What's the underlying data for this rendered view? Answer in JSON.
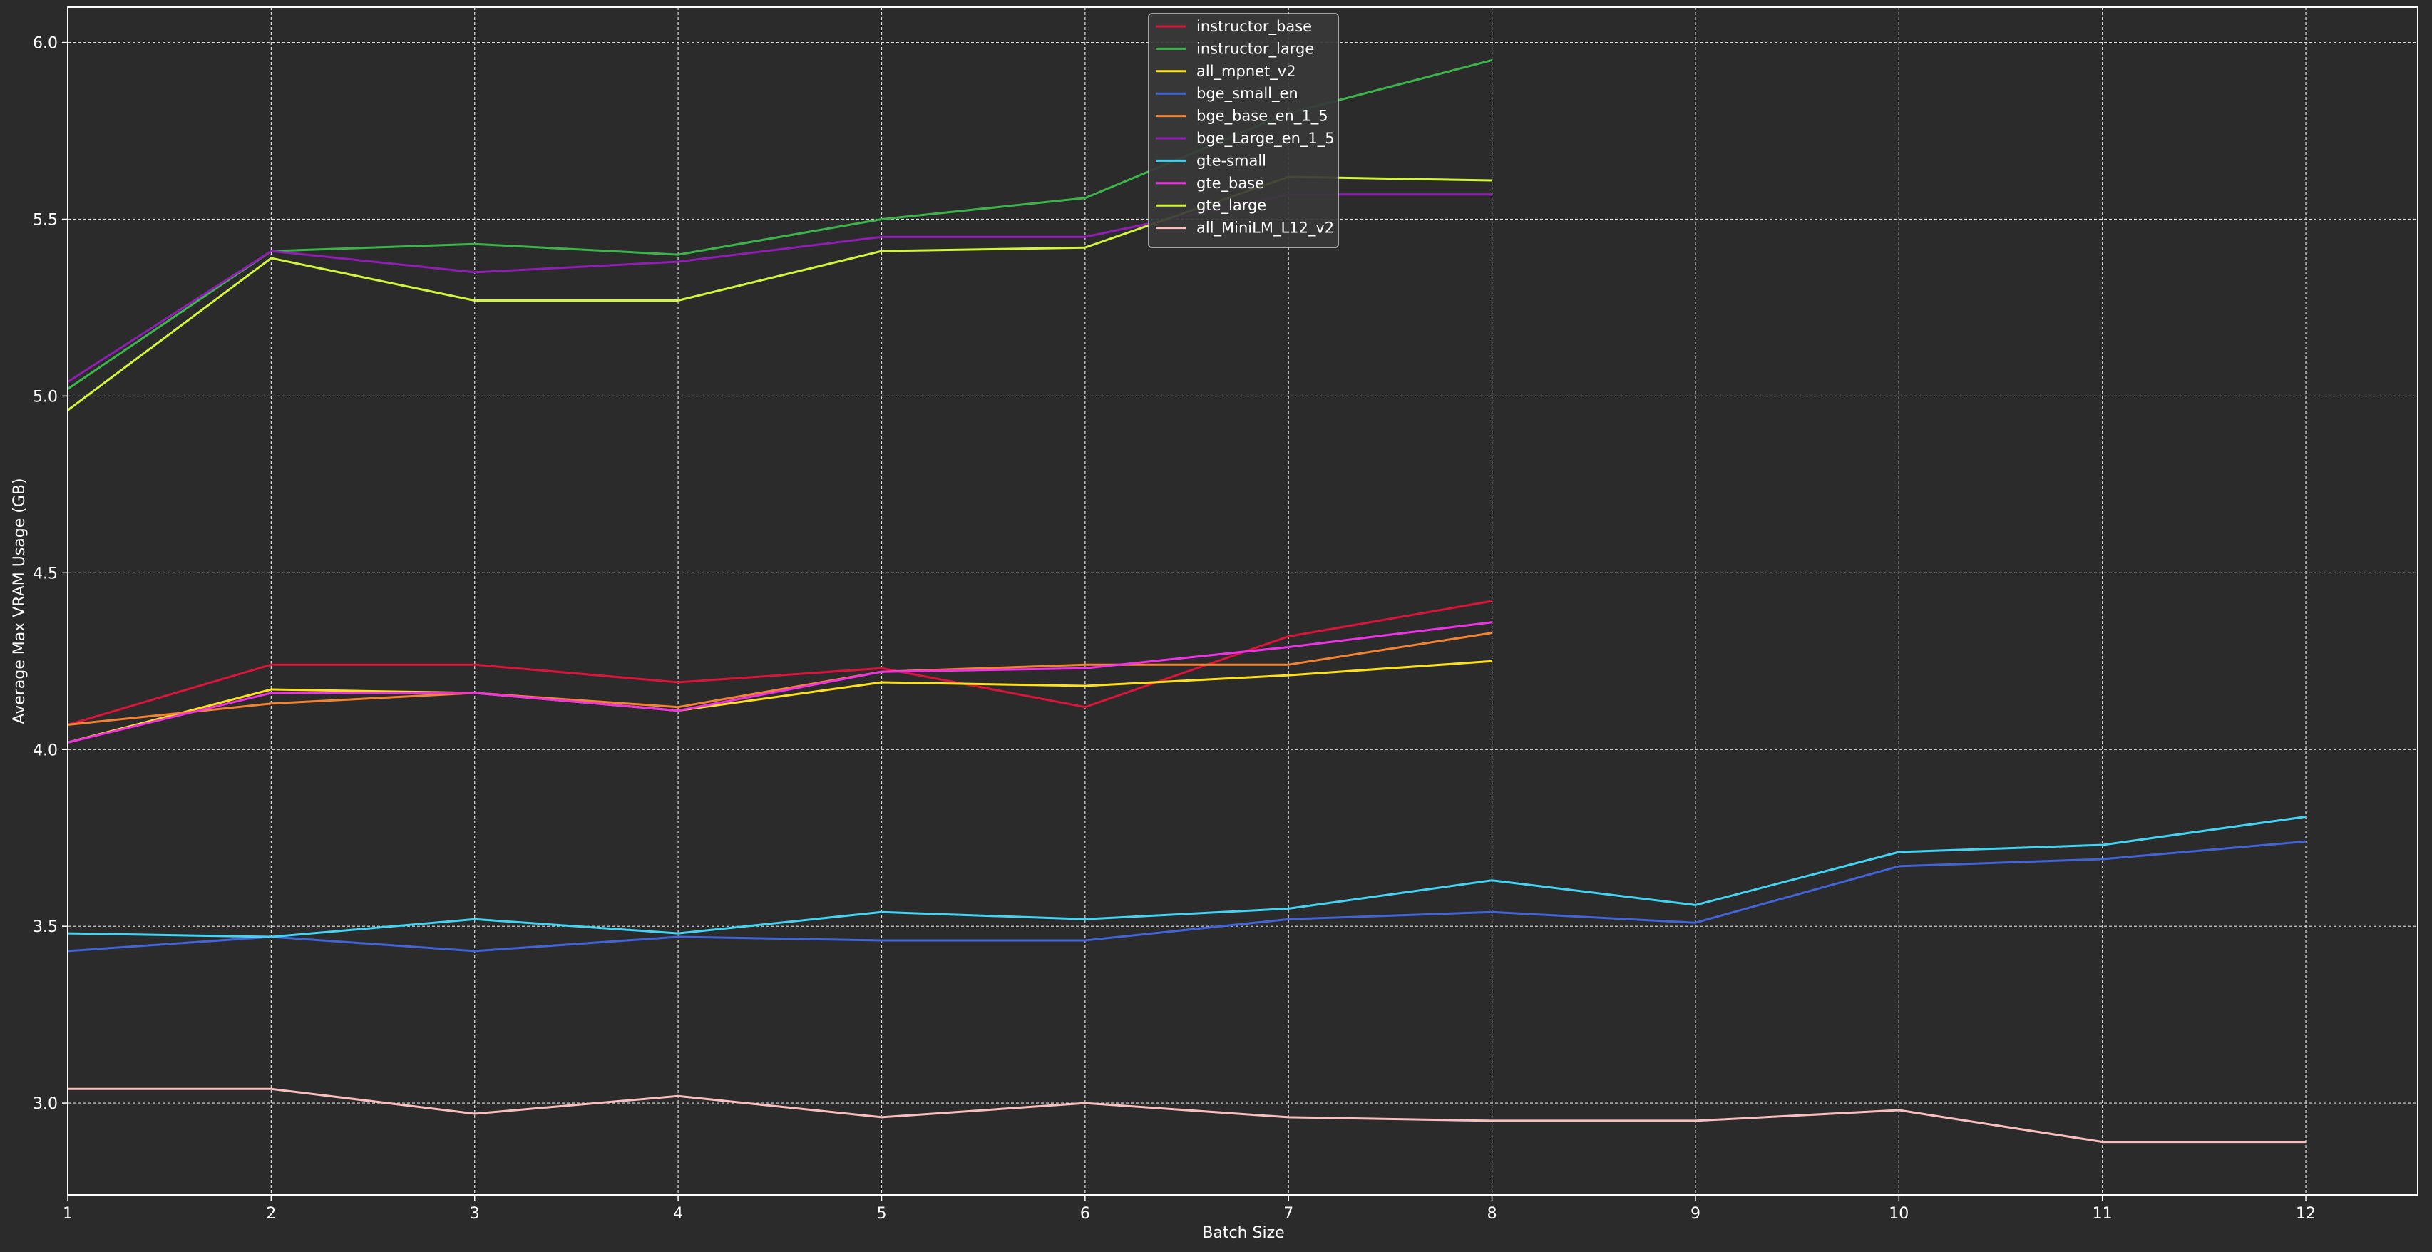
{
  "chart_data": {
    "type": "line",
    "title": "",
    "xlabel": "Batch Size",
    "ylabel": "Average Max VRAM Usage (GB)",
    "xlim": [
      1,
      12.55
    ],
    "ylim": [
      2.74,
      6.1
    ],
    "x_ticks": [
      1,
      2,
      3,
      4,
      5,
      6,
      7,
      8,
      9,
      10,
      11,
      12
    ],
    "y_ticks": [
      3.0,
      3.5,
      4.0,
      4.5,
      5.0,
      5.5,
      6.0
    ],
    "x_tick_labels": [
      "1",
      "2",
      "3",
      "4",
      "5",
      "6",
      "7",
      "8",
      "9",
      "10",
      "11",
      "12"
    ],
    "y_tick_labels": [
      "3.0",
      "3.5",
      "4.0",
      "4.5",
      "5.0",
      "5.5",
      "6.0"
    ],
    "grid": true,
    "legend_position": "top-center",
    "colors": {
      "background": "#2b2b2b",
      "grid": "#d9d9d9",
      "axis": "#ffffff"
    },
    "series": [
      {
        "name": "instructor_base",
        "color": "#dc143c",
        "x": [
          1,
          2,
          3,
          4,
          5,
          6,
          7,
          8
        ],
        "y": [
          4.07,
          4.24,
          4.24,
          4.19,
          4.23,
          4.12,
          4.32,
          4.42
        ]
      },
      {
        "name": "instructor_large",
        "color": "#3cb44b",
        "x": [
          1,
          2,
          3,
          4,
          5,
          6,
          7,
          8
        ],
        "y": [
          5.02,
          5.41,
          5.43,
          5.4,
          5.5,
          5.56,
          5.8,
          5.95
        ]
      },
      {
        "name": "all_mpnet_v2",
        "color": "#ffe119",
        "x": [
          1,
          2,
          3,
          4,
          5,
          6,
          7,
          8
        ],
        "y": [
          4.02,
          4.17,
          4.16,
          4.11,
          4.19,
          4.18,
          4.21,
          4.25
        ]
      },
      {
        "name": "bge_small_en",
        "color": "#4363d8",
        "x": [
          1,
          2,
          3,
          4,
          5,
          6,
          7,
          8,
          9,
          10,
          11,
          12
        ],
        "y": [
          3.43,
          3.47,
          3.43,
          3.47,
          3.46,
          3.46,
          3.52,
          3.54,
          3.51,
          3.67,
          3.69,
          3.74
        ]
      },
      {
        "name": "bge_base_en_1_5",
        "color": "#f58231",
        "x": [
          1,
          2,
          3,
          4,
          5,
          6,
          7,
          8
        ],
        "y": [
          4.07,
          4.13,
          4.16,
          4.12,
          4.22,
          4.24,
          4.24,
          4.33
        ]
      },
      {
        "name": "bge_Large_en_1_5",
        "color": "#911eb4",
        "x": [
          1,
          2,
          3,
          4,
          5,
          6,
          7,
          8
        ],
        "y": [
          5.04,
          5.41,
          5.35,
          5.38,
          5.45,
          5.45,
          5.57,
          5.57
        ]
      },
      {
        "name": "gte-small",
        "color": "#42d4f4",
        "x": [
          1,
          2,
          3,
          4,
          5,
          6,
          7,
          8,
          9,
          10,
          11,
          12
        ],
        "y": [
          3.48,
          3.47,
          3.52,
          3.48,
          3.54,
          3.52,
          3.55,
          3.63,
          3.56,
          3.71,
          3.73,
          3.81
        ]
      },
      {
        "name": "gte_base",
        "color": "#f032e6",
        "x": [
          1,
          2,
          3,
          4,
          5,
          6,
          7,
          8
        ],
        "y": [
          4.02,
          4.16,
          4.16,
          4.11,
          4.22,
          4.23,
          4.29,
          4.36
        ]
      },
      {
        "name": "gte_large",
        "color": "#d2f53c",
        "x": [
          1,
          2,
          3,
          4,
          5,
          6,
          7,
          8
        ],
        "y": [
          4.96,
          5.39,
          5.27,
          5.27,
          5.41,
          5.42,
          5.62,
          5.61
        ]
      },
      {
        "name": "all_MiniLM_L12_v2",
        "color": "#fabebe",
        "x": [
          1,
          2,
          3,
          4,
          5,
          6,
          7,
          8,
          9,
          10,
          11,
          12
        ],
        "y": [
          3.04,
          3.04,
          2.97,
          3.02,
          2.96,
          3.0,
          2.96,
          2.95,
          2.95,
          2.98,
          2.89,
          2.89
        ]
      }
    ]
  }
}
